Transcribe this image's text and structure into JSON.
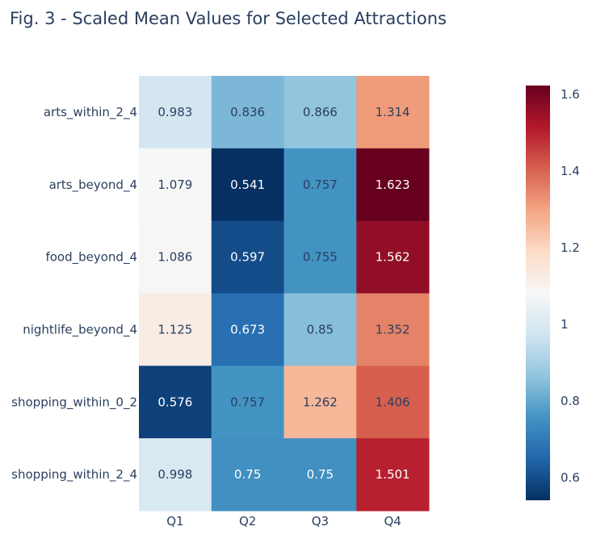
{
  "chart_data": {
    "type": "heatmap",
    "title": "Fig. 3 - Scaled Mean Values for Selected Attractions",
    "x": [
      "Q1",
      "Q2",
      "Q3",
      "Q4"
    ],
    "y": [
      "arts_within_2_4",
      "arts_beyond_4",
      "food_beyond_4",
      "nightlife_beyond_4",
      "shopping_within_0_2",
      "shopping_within_2_4"
    ],
    "z": [
      [
        0.983,
        0.836,
        0.866,
        1.314
      ],
      [
        1.079,
        0.541,
        0.757,
        1.623
      ],
      [
        1.086,
        0.597,
        0.755,
        1.562
      ],
      [
        1.125,
        0.673,
        0.85,
        1.352
      ],
      [
        0.576,
        0.757,
        1.262,
        1.406
      ],
      [
        0.998,
        0.75,
        0.75,
        1.501
      ]
    ],
    "text": [
      [
        "0.983",
        "0.836",
        "0.866",
        "1.314"
      ],
      [
        "1.079",
        "0.541",
        "0.757",
        "1.623"
      ],
      [
        "1.086",
        "0.597",
        "0.755",
        "1.562"
      ],
      [
        "1.125",
        "0.673",
        "0.85",
        "1.352"
      ],
      [
        "0.576",
        "0.757",
        "1.262",
        "1.406"
      ],
      [
        "0.998",
        "0.75",
        "0.75",
        "1.501"
      ]
    ],
    "zmin": 0.541,
    "zmax": 1.623,
    "colorscale": "RdBu_r",
    "colorbar": {
      "ticks": [
        0.6,
        0.8,
        1,
        1.2,
        1.4,
        1.6
      ],
      "tick_labels": [
        "0.6",
        "0.8",
        "1",
        "1.2",
        "1.4",
        "1.6"
      ]
    }
  },
  "colors": {
    "title": "#2a3f5f",
    "axis_text": "#2a3f5f",
    "scale": [
      "#053061",
      "#2166ac",
      "#4393c3",
      "#92c5de",
      "#d1e5f0",
      "#f7f7f7",
      "#fddbc7",
      "#f4a582",
      "#d6604d",
      "#b2182b",
      "#67001f"
    ]
  }
}
